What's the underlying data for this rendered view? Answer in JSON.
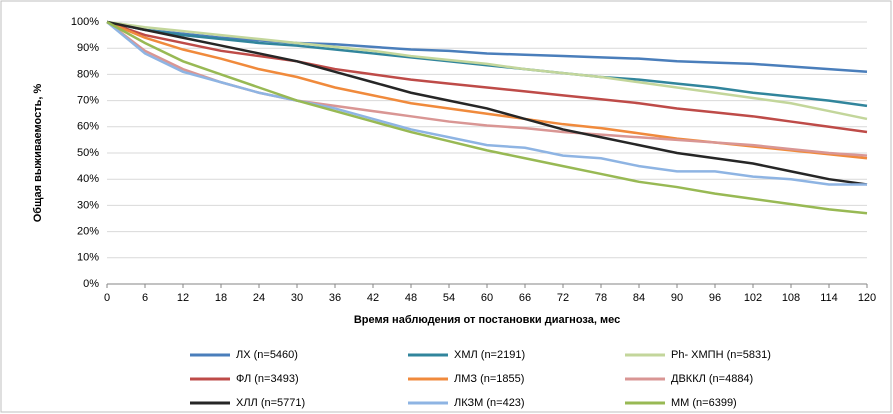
{
  "chart_data": {
    "type": "line",
    "y_label": "Общая выживаемость, %",
    "x_label": "Время наблюдения от постановки диагноза, мес",
    "x": [
      0,
      6,
      12,
      18,
      24,
      30,
      36,
      42,
      48,
      54,
      60,
      66,
      72,
      78,
      84,
      90,
      96,
      102,
      108,
      114,
      120
    ],
    "xlim": [
      0,
      120
    ],
    "xticks": [
      0,
      6,
      12,
      18,
      24,
      30,
      36,
      42,
      48,
      54,
      60,
      66,
      72,
      78,
      84,
      90,
      96,
      102,
      108,
      114,
      120
    ],
    "ylim": [
      0,
      100
    ],
    "yticks": [
      {
        "value": 0,
        "label": "0%"
      },
      {
        "value": 10,
        "label": "10%"
      },
      {
        "value": 20,
        "label": "20%"
      },
      {
        "value": 30,
        "label": "30%"
      },
      {
        "value": 40,
        "label": "40%"
      },
      {
        "value": 50,
        "label": "50%"
      },
      {
        "value": 60,
        "label": "60%"
      },
      {
        "value": 70,
        "label": "70%"
      },
      {
        "value": 80,
        "label": "80%"
      },
      {
        "value": 90,
        "label": "90%"
      },
      {
        "value": 100,
        "label": "100%"
      }
    ],
    "grid": true,
    "series": [
      {
        "name": "ЛХ (n=5460)",
        "color": "#4a7ebb",
        "values": [
          100,
          97,
          95.5,
          94,
          93,
          92,
          91.5,
          90.5,
          89.5,
          89,
          88,
          87.5,
          87,
          86.5,
          86,
          85,
          84.5,
          84,
          83,
          82,
          81
        ]
      },
      {
        "name": "ХМЛ (n=2191)",
        "color": "#31859c",
        "values": [
          100,
          97,
          95,
          93.5,
          92,
          91,
          89.5,
          88,
          86.5,
          85,
          83.5,
          82,
          80.5,
          79,
          78,
          76.5,
          75,
          73,
          71.5,
          70,
          68
        ]
      },
      {
        "name": "Ph- ХМПН (n=5831)",
        "color": "#c3d69b",
        "values": [
          100,
          98,
          96.5,
          95,
          93.5,
          92,
          90.5,
          89,
          87,
          85.5,
          84,
          82,
          80.5,
          79,
          77,
          75,
          73,
          71,
          69,
          66,
          63
        ]
      },
      {
        "name": "ФЛ (n=3493)",
        "color": "#be4b48",
        "values": [
          100,
          95,
          92,
          89,
          87,
          85,
          82,
          80,
          78,
          76.5,
          75,
          73.5,
          72,
          70.5,
          69,
          67,
          65.5,
          64,
          62,
          60,
          58
        ]
      },
      {
        "name": "ЛМЗ (n=1855)",
        "color": "#f08a3c",
        "values": [
          100,
          94,
          89.5,
          86,
          82,
          79,
          75,
          72,
          69,
          67,
          65,
          63,
          61,
          59.5,
          57.5,
          55.5,
          54,
          52.5,
          51,
          49.5,
          48
        ]
      },
      {
        "name": "ДВККЛ (n=4884)",
        "color": "#d99694",
        "values": [
          100,
          89,
          82,
          77,
          73,
          70,
          68,
          66,
          64,
          62,
          60.5,
          59.5,
          58,
          57,
          56,
          55,
          54,
          53,
          51.5,
          50,
          49
        ]
      },
      {
        "name": "ХЛЛ (n=5771)",
        "color": "#262626",
        "values": [
          100,
          97,
          94,
          91,
          88,
          85,
          81,
          77,
          73,
          70,
          67,
          63,
          59,
          56,
          53,
          50,
          48,
          46,
          43,
          40,
          38
        ]
      },
      {
        "name": "ЛКЗМ (n=423)",
        "color": "#8eb4e3",
        "values": [
          100,
          88,
          81,
          77,
          73,
          70,
          67,
          63,
          59,
          56,
          53,
          52,
          49,
          48,
          45,
          43,
          43,
          41,
          40,
          38,
          38
        ]
      },
      {
        "name": "ММ (n=6399)",
        "color": "#98b954",
        "values": [
          100,
          92,
          85,
          80,
          75,
          70,
          66,
          62,
          58,
          54.5,
          51,
          48,
          45,
          42,
          39,
          37,
          34.5,
          32.5,
          30.5,
          28.5,
          27
        ]
      }
    ]
  }
}
